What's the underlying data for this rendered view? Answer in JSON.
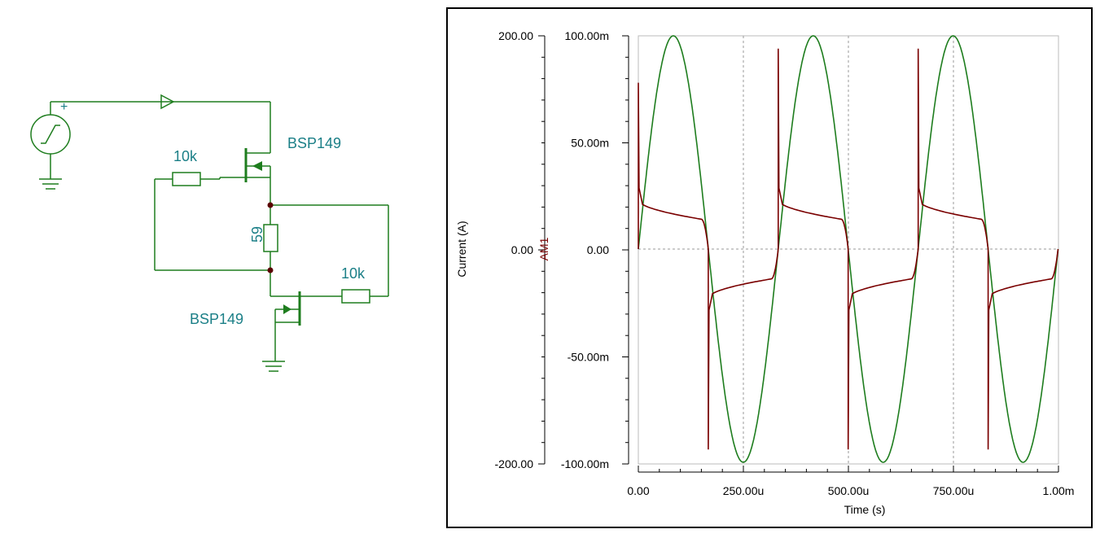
{
  "schematic": {
    "upper_transistor": "BSP149",
    "lower_transistor": "BSP149",
    "upper_resistor": "10k",
    "lower_resistor": "10k",
    "middle_resistor": "59",
    "source_polarity": "+"
  },
  "chart_data": {
    "type": "line",
    "xlabel": "Time (s)",
    "ylabel": "Current (A)",
    "ylabel_secondary": "AM1",
    "x_ticks": [
      "0.00",
      "250.00u",
      "500.00u",
      "750.00u",
      "1.00m"
    ],
    "left_axis_ticks": [
      "200.00",
      "0.00",
      "-200.00"
    ],
    "right_axis_ticks": [
      "100.00m",
      "50.00m",
      "0.00",
      "-50.00m",
      "-100.00m"
    ],
    "xlim": [
      0,
      0.001
    ],
    "ylim_left": [
      -200,
      200
    ],
    "ylim_right": [
      -0.1,
      0.1
    ],
    "grid": true,
    "colors": {
      "sine": "#1e7d1e",
      "current": "#7a0000",
      "schematic": "#1e7d1e",
      "label": "#1b7f87"
    },
    "series": [
      {
        "wave": "sine",
        "amplitude": 200,
        "period": 0.000333,
        "cycles": 3
      },
      {
        "wave": "current",
        "half_cycle_start_mA": 22,
        "half_cycle_end_mA": 14,
        "spike_peaks_mA": [
          78,
          94,
          94
        ],
        "spike_troughs_mA": [
          -94,
          -94,
          -94
        ]
      }
    ]
  }
}
